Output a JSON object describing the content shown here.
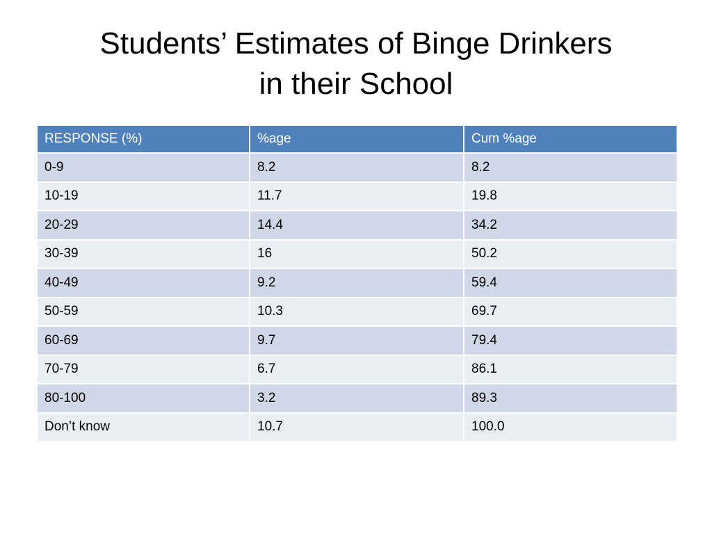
{
  "title": {
    "line1": "Students’ Estimates of Binge Drinkers",
    "line2": "in their School"
  },
  "table": {
    "headers": [
      "RESPONSE (%)",
      "%age",
      "Cum %age"
    ],
    "rows": [
      [
        "0-9",
        "8.2",
        "8.2"
      ],
      [
        "10-19",
        "11.7",
        "19.8"
      ],
      [
        "20-29",
        "14.4",
        "34.2"
      ],
      [
        "30-39",
        "16",
        "50.2"
      ],
      [
        "40-49",
        "9.2",
        "59.4"
      ],
      [
        "50-59",
        "10.3",
        "69.7"
      ],
      [
        "60-69",
        "9.7",
        "79.4"
      ],
      [
        "70-79",
        "6.7",
        "86.1"
      ],
      [
        "80-100",
        "3.2",
        "89.3"
      ],
      [
        "Don’t know",
        "10.7",
        "100.0"
      ]
    ]
  },
  "colors": {
    "header_bg": "#4f81bd",
    "row_odd_bg": "#d0d8e8",
    "row_even_bg": "#e9edf4"
  }
}
